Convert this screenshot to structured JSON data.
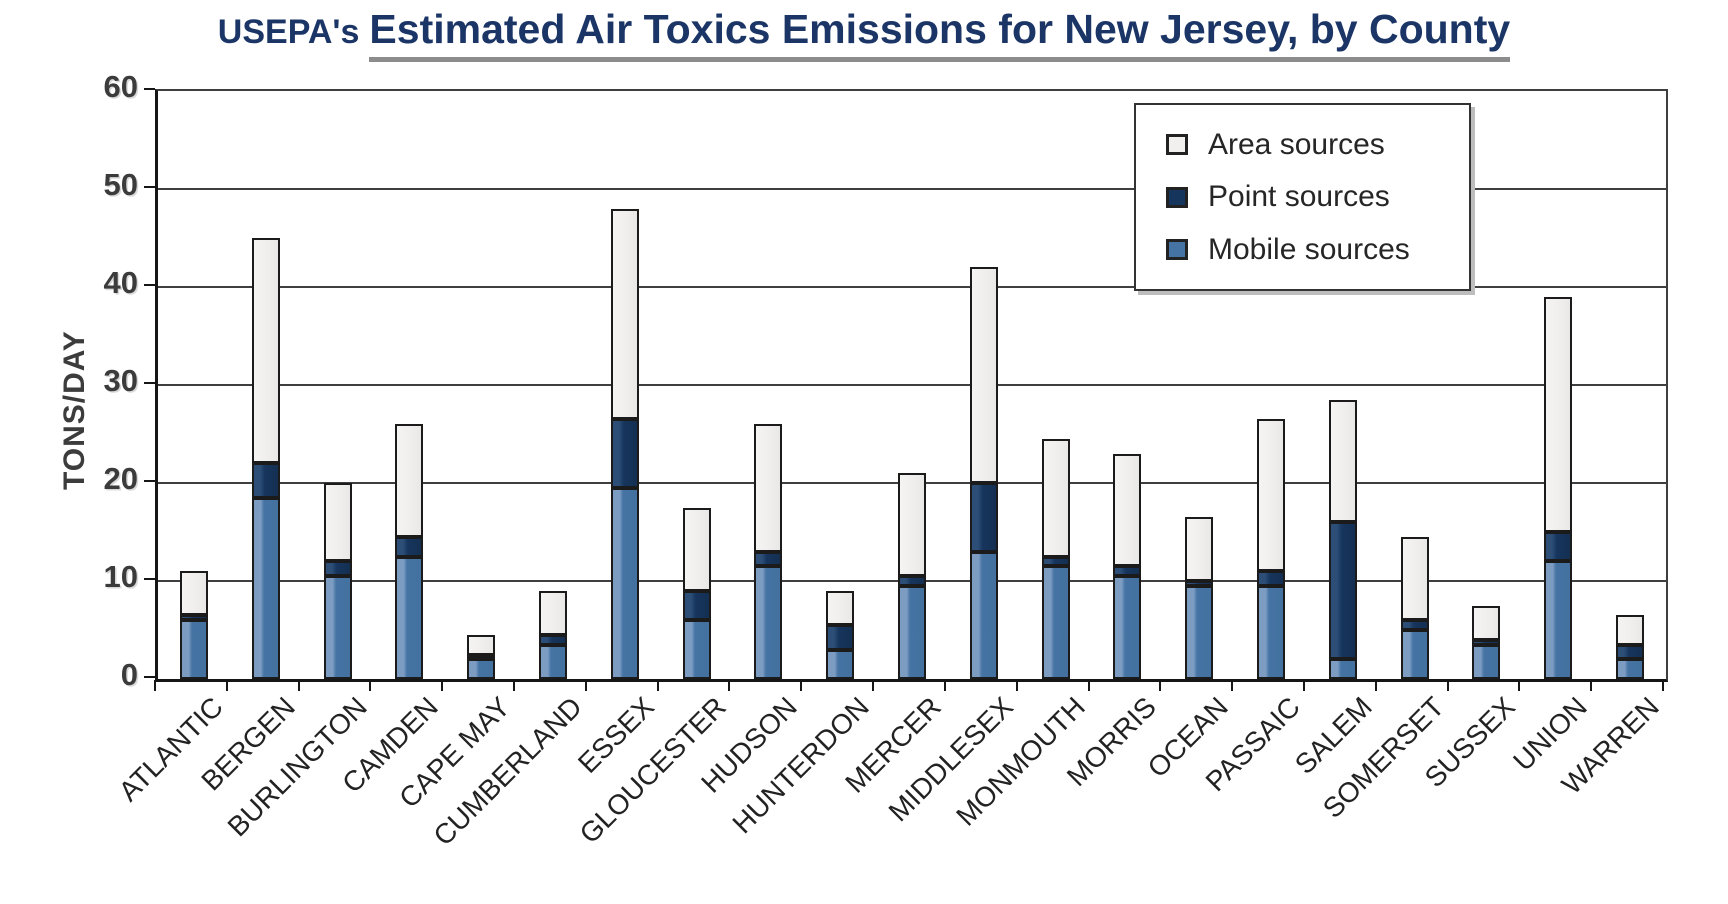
{
  "title": {
    "prefix": "USEPA's",
    "main": "Estimated Air Toxics Emissions for New Jersey, by County"
  },
  "colors": {
    "title_text": "#1b3666",
    "title_underline": "#8c8c8c",
    "mobile_fill": "#4573a3",
    "point_fill": "#16355d",
    "area_fill": "#f1f0ee",
    "segment_border": "#1b1b1b",
    "gridline": "#3f3f3f",
    "axis_line": "#161616",
    "tick_label": "#3b3b3b",
    "category_label": "#222222"
  },
  "chart_data": {
    "type": "bar",
    "subtype": "stacked-vertical",
    "title": "USEPA's Estimated Air Toxics Emissions for New Jersey, by County",
    "xlabel": "",
    "ylabel": "TONS/DAY",
    "ylim": [
      0,
      60
    ],
    "yticks": [
      0,
      10,
      20,
      30,
      40,
      50,
      60
    ],
    "grid": true,
    "legend_position": "top-right",
    "legend": [
      {
        "label": "Area sources",
        "color": "#f1f0ee"
      },
      {
        "label": "Point sources",
        "color": "#16355d"
      },
      {
        "label": "Mobile sources",
        "color": "#4573a3"
      }
    ],
    "categories": [
      "ATLANTIC",
      "BERGEN",
      "BURLINGTON",
      "CAMDEN",
      "CAPE MAY",
      "CUMBERLAND",
      "ESSEX",
      "GLOUCESTER",
      "HUDSON",
      "HUNTERDON",
      "MERCER",
      "MIDDLESEX",
      "MONMOUTH",
      "MORRIS",
      "OCEAN",
      "PASSAIC",
      "SALEM",
      "SOMERSET",
      "SUSSEX",
      "UNION",
      "WARREN"
    ],
    "series": [
      {
        "name": "Mobile sources",
        "css": "seg-mobile",
        "values": [
          6,
          18.5,
          10.5,
          12.5,
          2,
          3.5,
          19.5,
          6,
          11.5,
          3,
          9.5,
          13,
          11.5,
          10.5,
          9.5,
          9.5,
          2,
          5,
          3.5,
          12,
          2
        ]
      },
      {
        "name": "Point sources",
        "css": "seg-point",
        "values": [
          0.5,
          3.5,
          1.5,
          2,
          0.5,
          1,
          7,
          3,
          1.5,
          2.5,
          1,
          7,
          1,
          1,
          0.5,
          1.5,
          14,
          1,
          0.5,
          3,
          1.5
        ]
      },
      {
        "name": "Area sources",
        "css": "seg-area",
        "values": [
          4.5,
          23,
          8,
          11.5,
          2,
          4.5,
          21.5,
          8.5,
          13,
          3.5,
          10.5,
          22,
          12,
          11.5,
          6.5,
          15.5,
          12.5,
          8.5,
          3.5,
          24,
          3
        ]
      }
    ],
    "totals": [
      11,
      45,
      20,
      26,
      4.5,
      9,
      48,
      17.5,
      26,
      9,
      21,
      42,
      24.5,
      23,
      16.5,
      26.5,
      28.5,
      14.5,
      7.5,
      39,
      6.5
    ]
  }
}
